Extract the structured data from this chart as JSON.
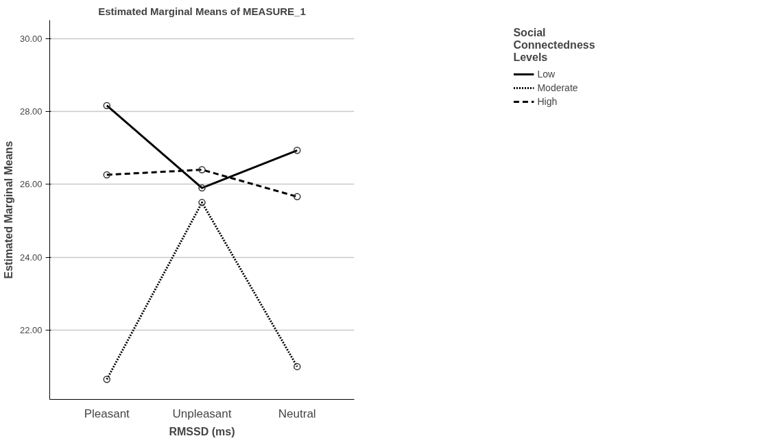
{
  "chart_data": {
    "type": "line",
    "title": "Estimated Marginal Means of MEASURE_1",
    "xlabel": "RMSSD (ms)",
    "ylabel": "Estimated Marginal Means",
    "legend_title": "Social Connectedness Levels",
    "categories": [
      "Pleasant",
      "Unpleasant",
      "Neutral"
    ],
    "series": [
      {
        "name": "Low",
        "color": "#000000",
        "line_style": "solid",
        "values": [
          28.16,
          25.9,
          26.93
        ]
      },
      {
        "name": "Moderate",
        "color": "#000000",
        "line_style": "dotted",
        "values": [
          20.65,
          25.5,
          21.0
        ]
      },
      {
        "name": "High",
        "color": "#000000",
        "line_style": "dashed",
        "values": [
          26.26,
          26.4,
          25.66
        ]
      }
    ],
    "ylim": [
      20.1,
      30.5
    ],
    "yticks": [
      {
        "value": 22,
        "label": "22.00"
      },
      {
        "value": 24,
        "label": "24.00"
      },
      {
        "value": 26,
        "label": "26.00"
      },
      {
        "value": 28,
        "label": "28.00"
      },
      {
        "value": 30,
        "label": "30.00"
      }
    ],
    "grid": "y",
    "legend": "top right",
    "marker": "circle"
  }
}
